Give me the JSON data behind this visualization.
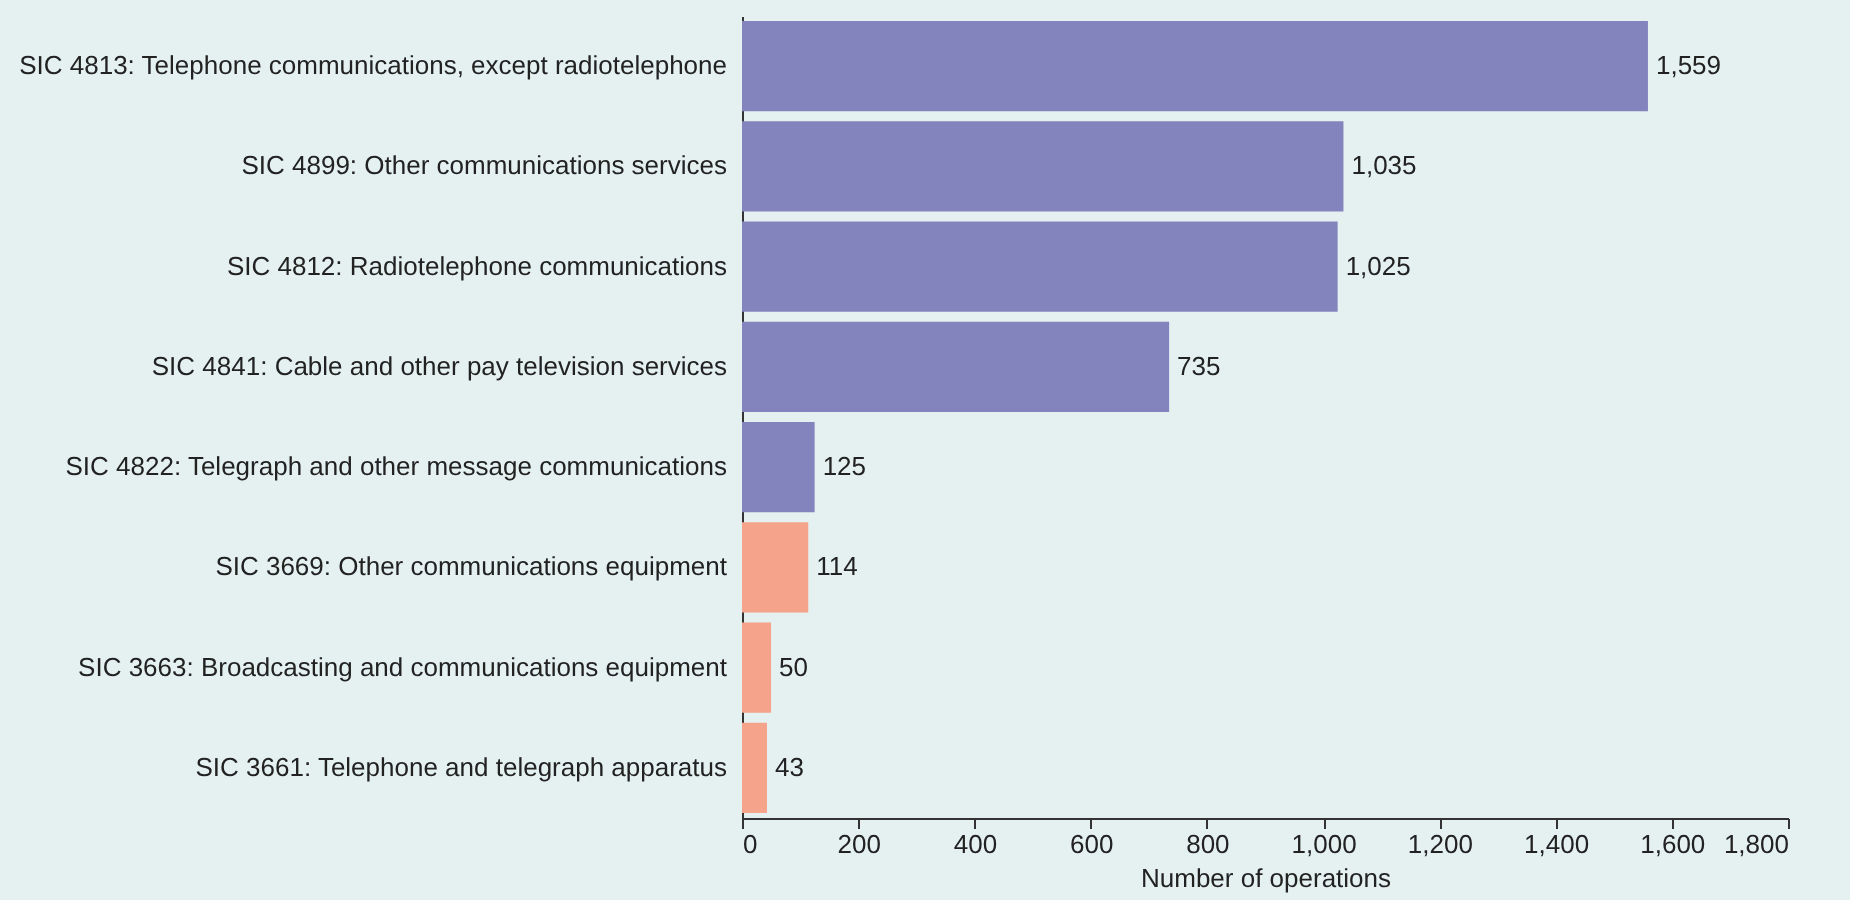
{
  "chart_data": {
    "type": "bar",
    "orientation": "horizontal",
    "xlabel": "Number of operations",
    "categories": [
      "SIC 4813: Telephone communications, except radiotelephone",
      "SIC 4899: Other communications services",
      "SIC 4812: Radiotelephone communications",
      "SIC 4841: Cable and other pay television services",
      "SIC 4822: Telegraph and other message communications",
      "SIC 3669: Other communications equipment",
      "SIC 3663: Broadcasting and communications equipment",
      "SIC 3661: Telephone and telegraph apparatus"
    ],
    "values": [
      1559,
      1035,
      1025,
      735,
      125,
      114,
      50,
      43
    ],
    "value_labels": [
      "1,559",
      "1,035",
      "1,025",
      "735",
      "125",
      "114",
      "50",
      "43"
    ],
    "colors": [
      "#8383bd",
      "#8383bd",
      "#8383bd",
      "#8383bd",
      "#8383bd",
      "#f6a38c",
      "#f6a38c",
      "#f6a38c"
    ],
    "xlim": [
      0,
      1800
    ],
    "xticks": [
      0,
      200,
      400,
      600,
      800,
      {
        "value": 1000,
        "label": "1,000"
      },
      {
        "value": 1200,
        "label": "1,200"
      },
      {
        "value": 1400,
        "label": "1,400"
      },
      {
        "value": 1600,
        "label": "1,600"
      },
      {
        "value": 1800,
        "label": "1,800"
      }
    ],
    "grid": false,
    "legend": false
  }
}
